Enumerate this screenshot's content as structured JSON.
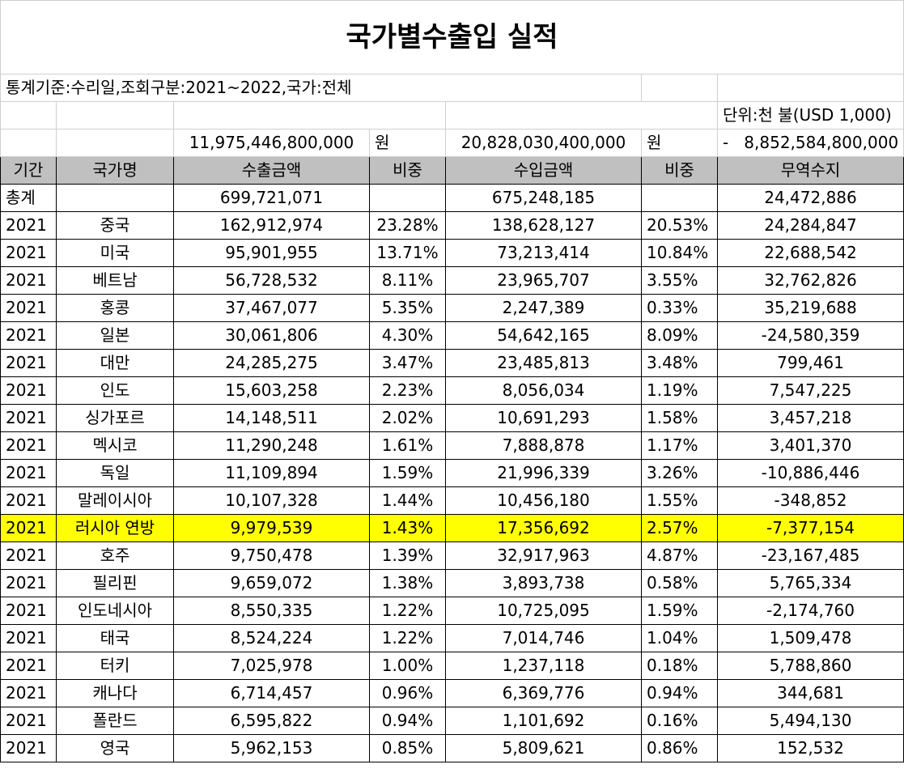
{
  "title": "국가별수출입 실적",
  "criteria": "통계기준:수리일,조회구분:2021~2022,국가:전체",
  "unit": "단위:천 불(USD 1,000)",
  "totals_won": {
    "export": "11,975,446,800,000",
    "export_unit": "원",
    "import": "20,828,030,400,000",
    "import_unit": "원",
    "balance_prefix": "-",
    "balance": "8,852,584,800,000"
  },
  "headers": [
    "기간",
    "국가명",
    "수출금액",
    "비중",
    "수입금액",
    "비중",
    "무역수지"
  ],
  "total_row": {
    "label": "총계",
    "export": "699,721,071",
    "import": "675,248,185",
    "balance": "24,472,886"
  },
  "rows": [
    {
      "period": "2021",
      "country": "중국",
      "export": "162,912,974",
      "export_share": "23.28%",
      "import": "138,628,127",
      "import_share": "20.53%",
      "balance": "24,284,847"
    },
    {
      "period": "2021",
      "country": "미국",
      "export": "95,901,955",
      "export_share": "13.71%",
      "import": "73,213,414",
      "import_share": "10.84%",
      "balance": "22,688,542"
    },
    {
      "period": "2021",
      "country": "베트남",
      "export": "56,728,532",
      "export_share": "8.11%",
      "import": "23,965,707",
      "import_share": "3.55%",
      "balance": "32,762,826"
    },
    {
      "period": "2021",
      "country": "홍콩",
      "export": "37,467,077",
      "export_share": "5.35%",
      "import": "2,247,389",
      "import_share": "0.33%",
      "balance": "35,219,688"
    },
    {
      "period": "2021",
      "country": "일본",
      "export": "30,061,806",
      "export_share": "4.30%",
      "import": "54,642,165",
      "import_share": "8.09%",
      "balance": "-24,580,359"
    },
    {
      "period": "2021",
      "country": "대만",
      "export": "24,285,275",
      "export_share": "3.47%",
      "import": "23,485,813",
      "import_share": "3.48%",
      "balance": "799,461"
    },
    {
      "period": "2021",
      "country": "인도",
      "export": "15,603,258",
      "export_share": "2.23%",
      "import": "8,056,034",
      "import_share": "1.19%",
      "balance": "7,547,225"
    },
    {
      "period": "2021",
      "country": "싱가포르",
      "export": "14,148,511",
      "export_share": "2.02%",
      "import": "10,691,293",
      "import_share": "1.58%",
      "balance": "3,457,218"
    },
    {
      "period": "2021",
      "country": "멕시코",
      "export": "11,290,248",
      "export_share": "1.61%",
      "import": "7,888,878",
      "import_share": "1.17%",
      "balance": "3,401,370"
    },
    {
      "period": "2021",
      "country": "독일",
      "export": "11,109,894",
      "export_share": "1.59%",
      "import": "21,996,339",
      "import_share": "3.26%",
      "balance": "-10,886,446"
    },
    {
      "period": "2021",
      "country": "말레이시아",
      "export": "10,107,328",
      "export_share": "1.44%",
      "import": "10,456,180",
      "import_share": "1.55%",
      "balance": "-348,852"
    },
    {
      "period": "2021",
      "country": "러시아 연방",
      "export": "9,979,539",
      "export_share": "1.43%",
      "import": "17,356,692",
      "import_share": "2.57%",
      "balance": "-7,377,154",
      "highlight": true
    },
    {
      "period": "2021",
      "country": "호주",
      "export": "9,750,478",
      "export_share": "1.39%",
      "import": "32,917,963",
      "import_share": "4.87%",
      "balance": "-23,167,485"
    },
    {
      "period": "2021",
      "country": "필리핀",
      "export": "9,659,072",
      "export_share": "1.38%",
      "import": "3,893,738",
      "import_share": "0.58%",
      "balance": "5,765,334"
    },
    {
      "period": "2021",
      "country": "인도네시아",
      "export": "8,550,335",
      "export_share": "1.22%",
      "import": "10,725,095",
      "import_share": "1.59%",
      "balance": "-2,174,760"
    },
    {
      "period": "2021",
      "country": "태국",
      "export": "8,524,224",
      "export_share": "1.22%",
      "import": "7,014,746",
      "import_share": "1.04%",
      "balance": "1,509,478"
    },
    {
      "period": "2021",
      "country": "터키",
      "export": "7,025,978",
      "export_share": "1.00%",
      "import": "1,237,118",
      "import_share": "0.18%",
      "balance": "5,788,860"
    },
    {
      "period": "2021",
      "country": "캐나다",
      "export": "6,714,457",
      "export_share": "0.96%",
      "import": "6,369,776",
      "import_share": "0.94%",
      "balance": "344,681"
    },
    {
      "period": "2021",
      "country": "폴란드",
      "export": "6,595,822",
      "export_share": "0.94%",
      "import": "1,101,692",
      "import_share": "0.16%",
      "balance": "5,494,130"
    },
    {
      "period": "2021",
      "country": "영국",
      "export": "5,962,153",
      "export_share": "0.85%",
      "import": "5,809,621",
      "import_share": "0.86%",
      "balance": "152,532"
    }
  ],
  "colors": {
    "header_bg": "#c0c0c0",
    "highlight_bg": "#ffff00"
  }
}
